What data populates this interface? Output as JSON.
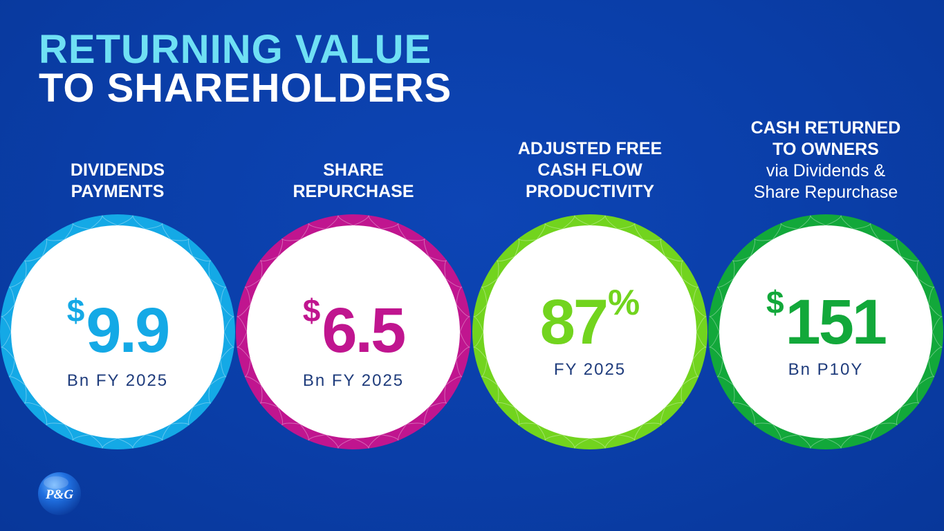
{
  "title": {
    "line1": "RETURNING VALUE",
    "line2": "TO SHAREHOLDERS"
  },
  "stats": [
    {
      "label_line1": "DIVIDENDS",
      "label_line2": "PAYMENTS",
      "currency": "$",
      "value": "9.9",
      "sub": "Bn FY 2025",
      "color": "#14a9e6"
    },
    {
      "label_line1": "SHARE",
      "label_line2": "REPURCHASE",
      "currency": "$",
      "value": "6.5",
      "sub": "Bn FY 2025",
      "color": "#c0158f"
    },
    {
      "label_line1": "ADJUSTED FREE",
      "label_line2": "CASH FLOW",
      "label_line3": "PRODUCTIVITY",
      "value": "87",
      "suffix": "%",
      "sub": "FY 2025",
      "color": "#72d41e"
    },
    {
      "label_line1": "CASH RETURNED",
      "label_line2": "TO OWNERS",
      "label_line3": "via Dividends &",
      "label_line4": "Share Repurchase",
      "currency": "$",
      "value": "151",
      "sub": "Bn P10Y",
      "color": "#12a83a"
    }
  ],
  "logo": {
    "text": "P&G",
    "icon": "pg-logo-icon"
  },
  "colors": {
    "background": "#0a3ea8",
    "title_accent": "#6fe0f4",
    "sub_text": "#1f3c7c"
  }
}
